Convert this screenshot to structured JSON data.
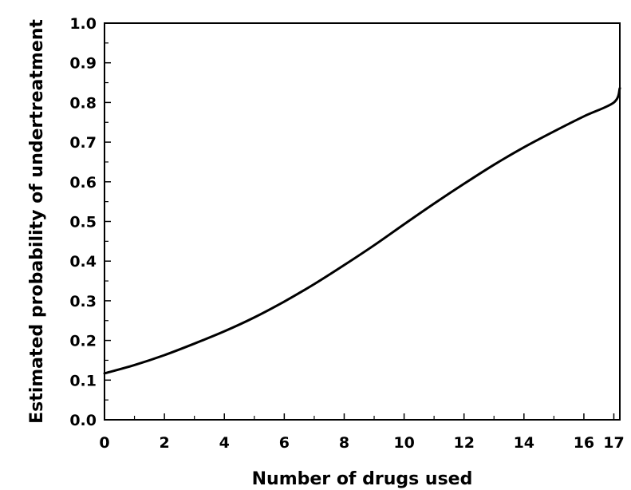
{
  "chart_data": {
    "type": "line",
    "title": "",
    "xlabel": "Number of drugs used",
    "ylabel": "Estimated probability of undertreatment",
    "xlim": [
      0,
      17.2
    ],
    "ylim": [
      0,
      1.0
    ],
    "x_ticks": [
      0,
      2,
      4,
      6,
      8,
      10,
      12,
      14,
      16,
      17
    ],
    "x_tick_labels": [
      "0",
      "2",
      "4",
      "6",
      "8",
      "10",
      "12",
      "14",
      "16",
      "17"
    ],
    "y_ticks": [
      0.0,
      0.1,
      0.2,
      0.3,
      0.4,
      0.5,
      0.6,
      0.7,
      0.8,
      0.9,
      1.0
    ],
    "y_tick_labels": [
      "0.0",
      "0.1",
      "0.2",
      "0.3",
      "0.4",
      "0.5",
      "0.6",
      "0.7",
      "0.8",
      "0.9",
      "1.0"
    ],
    "grid": false,
    "legend": "none",
    "series": [
      {
        "color": "#000000",
        "x": [
          0,
          1,
          2,
          3,
          4,
          5,
          6,
          7,
          8,
          9,
          10,
          11,
          12,
          13,
          14,
          15,
          16,
          17,
          17.2
        ],
        "y": [
          0.117,
          0.138,
          0.163,
          0.192,
          0.223,
          0.258,
          0.298,
          0.342,
          0.39,
          0.44,
          0.493,
          0.545,
          0.595,
          0.643,
          0.687,
          0.727,
          0.765,
          0.8,
          0.836
        ]
      }
    ]
  }
}
